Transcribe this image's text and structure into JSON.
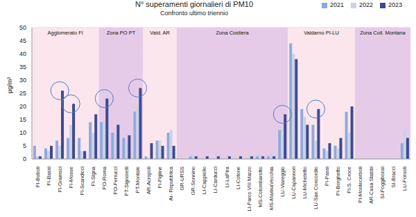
{
  "chart_data": {
    "type": "bar",
    "title": "N° superamenti giornalieri di PM10",
    "subtitle": "Confronto ultimo triennio",
    "y_label": "µg/m³",
    "categories": [
      "FI-Boboli",
      "FI-Bassi",
      "FI-Gramsci",
      "FI-Mosse",
      "FI-Scandicci",
      "FI-Signa",
      "PO-Roma",
      "PO-Ferrucci",
      "PT-Signorelli",
      "PT-Montale",
      "AR-Acropoli",
      "FI-Figline",
      "Ar- Repubblica",
      "GR-URSS",
      "GR-Sonnino",
      "LI-Cappiello",
      "LI-Carducci",
      "LI-LaPira",
      "LI-Cotone",
      "LI-Parco VIII Marzo",
      "MS-Colombarotto",
      "MS-MarinaVecchia",
      "LU-Viareggio",
      "LU-Capannori",
      "LU-Micheletto",
      "LU-San Concordio",
      "PI-Passi",
      "PI-Borghetto",
      "PI-S. Croce",
      "PI-Montecerboli",
      "AR-Casa Stabbi",
      "SI-Poggibonsi",
      "SI-Bracci",
      "LU-Fornoli"
    ],
    "series": [
      {
        "name": "2021",
        "color": "#8eaadb",
        "values": [
          5,
          4,
          7,
          8,
          8,
          14,
          14,
          10,
          8,
          18,
          1,
          7,
          10,
          0,
          1,
          0,
          0,
          0,
          0,
          0,
          1,
          1,
          11,
          44,
          19,
          13,
          4,
          5,
          18,
          0,
          0,
          0,
          0,
          6
        ]
      },
      {
        "name": "2022",
        "color": "#c9d3e8",
        "values": [
          1,
          3,
          5,
          13,
          3,
          10,
          14,
          9,
          6,
          20,
          0,
          7,
          11,
          0,
          1,
          0,
          0,
          0,
          0,
          1,
          2,
          2,
          12,
          40,
          16,
          7,
          3,
          4,
          10,
          0,
          0,
          0,
          0,
          11
        ]
      },
      {
        "name": "2023",
        "color": "#3d4a8f",
        "values": [
          1,
          5,
          26,
          21,
          3,
          17,
          23,
          13,
          9,
          27,
          6,
          5,
          5,
          0,
          1,
          1,
          1,
          1,
          1,
          1,
          1,
          1,
          17,
          38,
          13,
          19,
          6,
          8,
          20,
          0,
          0,
          0,
          0,
          8
        ]
      }
    ],
    "ylim": [
      0,
      50
    ],
    "yticks": [
      0,
      5,
      10,
      15,
      20,
      25,
      30,
      35,
      40,
      45,
      50
    ],
    "grid": true,
    "legend": "top-right",
    "zones": [
      {
        "label": "Agglomerato FI",
        "from": "FI-Boboli",
        "to": "FI-Signa",
        "color": "#fbe6ee"
      },
      {
        "label": "Zona PO PT",
        "from": "PO-Roma",
        "to": "PT-Montale",
        "color": "#e6cbe9"
      },
      {
        "label": "Vald. AR",
        "from": "AR-Acropoli",
        "to": "Ar- Repubblica",
        "color": "#fbe6ee"
      },
      {
        "label": "Zona Costiera",
        "from": "GR-URSS",
        "to": "LU-Viareggio",
        "color": "#e6cbe9"
      },
      {
        "label": "Valdarno PI-LU",
        "from": "LU-Capannori",
        "to": "PI-S. Croce",
        "color": "#fbe6ee"
      },
      {
        "label": "Zona Coll. Montana",
        "from": "PI-Montecerboli",
        "to": "LU-Fornoli",
        "color": "#e6cbe9"
      }
    ],
    "highlighted": [
      "FI-Gramsci",
      "FI-Mosse",
      "PO-Roma",
      "PT-Montale",
      "LU-Viareggio",
      "LU-San Concordio"
    ]
  }
}
